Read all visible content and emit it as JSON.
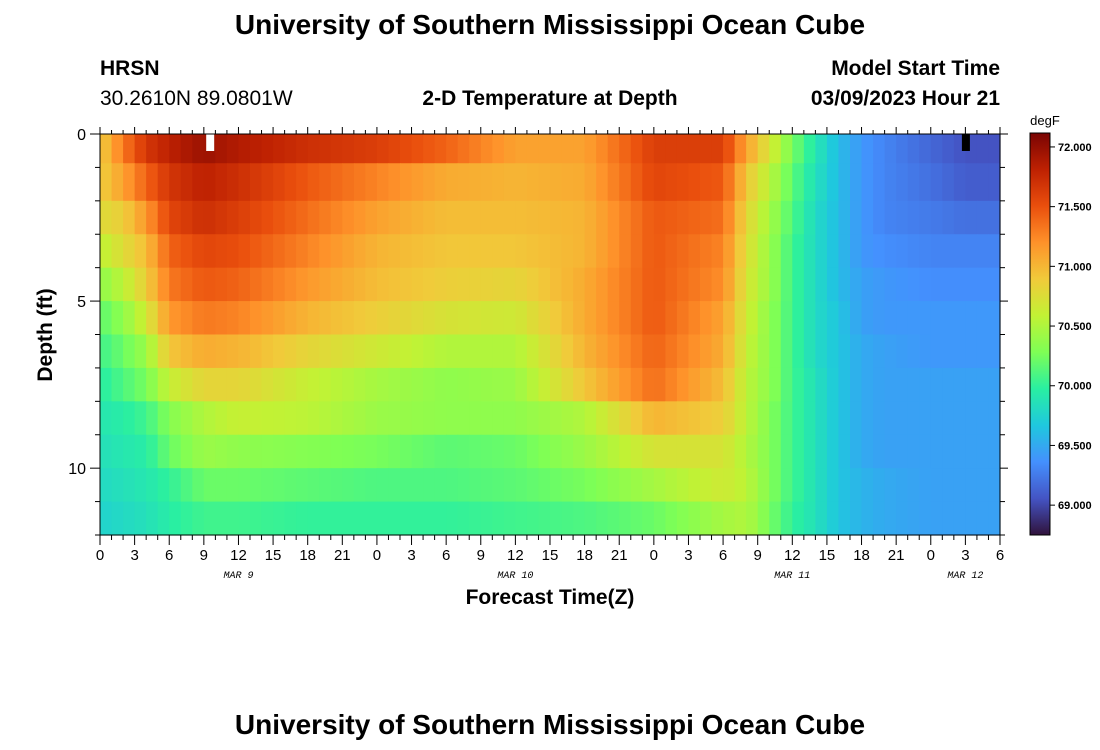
{
  "header": {
    "title": "University of Southern Mississippi Ocean Cube",
    "station": "HRSN",
    "coords": "30.2610N  89.0801W",
    "plot_title": "2-D Temperature at Depth",
    "model_start_label": "Model Start Time",
    "model_start_value": "03/09/2023 Hour 21"
  },
  "footer": {
    "title": "University of Southern Mississippi Ocean Cube"
  },
  "chart_data": {
    "type": "heatmap",
    "title": "2-D Temperature at Depth",
    "xlabel": "Forecast Time(Z)",
    "ylabel": "Depth (ft)",
    "units": "degF",
    "x_ticks": [
      "0",
      "3",
      "6",
      "9",
      "12",
      "15",
      "18",
      "21",
      "0",
      "3",
      "6",
      "9",
      "12",
      "15",
      "18",
      "21",
      "0",
      "3",
      "6",
      "9",
      "12",
      "15",
      "18",
      "21",
      "0",
      "3",
      "6"
    ],
    "day_labels": [
      {
        "label": "MAR 9",
        "at_hour": 12
      },
      {
        "label": "MAR 10",
        "at_hour": 36
      },
      {
        "label": "MAR 11",
        "at_hour": 60
      },
      {
        "label": "MAR 12",
        "at_hour": 75
      }
    ],
    "x_range_hours": [
      0,
      78
    ],
    "y_ticks": [
      0,
      5,
      10
    ],
    "y_range_ft": [
      0,
      12
    ],
    "colorbar": {
      "range": [
        68.75,
        72.1
      ],
      "ticks": [
        "72.000",
        "71.500",
        "71.000",
        "70.500",
        "70.000",
        "69.500",
        "69.000"
      ],
      "stops": [
        "#30123b",
        "#4454c4",
        "#4490fe",
        "#1fc8de",
        "#29efa2",
        "#7eff55",
        "#c2f234",
        "#f1ca3a",
        "#fe922a",
        "#ea4f0d",
        "#be2102",
        "#7a0403"
      ]
    },
    "depth_levels_ft": [
      0.25,
      1.5,
      2.5,
      3.5,
      4.5,
      5.5,
      6.5,
      7.5,
      8.5,
      9.5,
      10.5,
      11.5
    ],
    "temperature_keyframes": {
      "hours": [
        0,
        2,
        4,
        6,
        9,
        12,
        18,
        24,
        30,
        36,
        42,
        48,
        54,
        56,
        58,
        60,
        62,
        64,
        66,
        68,
        72,
        75,
        78
      ],
      "rows": [
        [
          70.85,
          71.3,
          71.65,
          71.8,
          71.95,
          71.85,
          71.7,
          71.6,
          71.4,
          71.1,
          71.1,
          71.6,
          71.6,
          71.1,
          70.7,
          70.25,
          69.9,
          69.6,
          69.4,
          69.3,
          69.15,
          69.05,
          69.05
        ],
        [
          70.85,
          71.1,
          71.4,
          71.65,
          71.8,
          71.7,
          71.45,
          71.25,
          71.05,
          71.0,
          71.05,
          71.55,
          71.45,
          70.9,
          70.55,
          70.15,
          69.85,
          69.6,
          69.4,
          69.3,
          69.2,
          69.1,
          69.1
        ],
        [
          70.75,
          70.85,
          71.15,
          71.55,
          71.7,
          71.6,
          71.35,
          71.1,
          70.95,
          70.95,
          71.0,
          71.45,
          71.35,
          70.8,
          70.45,
          70.1,
          69.8,
          69.6,
          69.4,
          69.3,
          69.25,
          69.2,
          69.2
        ],
        [
          70.55,
          70.75,
          70.95,
          71.4,
          71.55,
          71.5,
          71.25,
          71.0,
          70.9,
          70.9,
          71.0,
          71.45,
          71.25,
          70.75,
          70.4,
          70.05,
          69.8,
          69.6,
          69.4,
          69.35,
          69.3,
          69.3,
          69.3
        ],
        [
          70.35,
          70.55,
          70.85,
          71.3,
          71.45,
          71.4,
          71.15,
          70.95,
          70.85,
          70.8,
          71.05,
          71.45,
          71.2,
          70.7,
          70.4,
          70.05,
          69.8,
          69.6,
          69.45,
          69.4,
          69.35,
          69.35,
          69.35
        ],
        [
          70.15,
          70.35,
          70.65,
          71.15,
          71.3,
          71.25,
          71.0,
          70.85,
          70.7,
          70.65,
          71.05,
          71.45,
          71.1,
          70.65,
          70.35,
          70.05,
          69.8,
          69.65,
          69.45,
          69.4,
          69.4,
          69.4,
          69.4
        ],
        [
          70.05,
          70.2,
          70.4,
          70.9,
          71.05,
          71.0,
          70.8,
          70.65,
          70.5,
          70.5,
          71.0,
          71.4,
          71.05,
          70.6,
          70.35,
          70.05,
          69.8,
          69.65,
          69.5,
          69.45,
          69.4,
          69.4,
          69.4
        ],
        [
          69.95,
          70.1,
          70.25,
          70.6,
          70.8,
          70.8,
          70.6,
          70.45,
          70.35,
          70.4,
          70.9,
          71.35,
          70.95,
          70.55,
          70.35,
          70.05,
          69.85,
          69.65,
          69.5,
          69.45,
          69.45,
          69.45,
          69.45
        ],
        [
          69.9,
          69.95,
          70.05,
          70.3,
          70.5,
          70.6,
          70.55,
          70.4,
          70.35,
          70.35,
          70.5,
          71.0,
          70.85,
          70.55,
          70.3,
          70.05,
          69.85,
          69.65,
          69.5,
          69.45,
          69.45,
          69.45,
          69.45
        ],
        [
          69.85,
          69.9,
          69.95,
          70.2,
          70.4,
          70.35,
          70.3,
          70.25,
          70.15,
          70.2,
          70.4,
          70.7,
          70.7,
          70.5,
          70.3,
          70.05,
          69.85,
          69.65,
          69.5,
          69.45,
          69.45,
          69.45,
          69.45
        ],
        [
          69.8,
          69.85,
          69.9,
          70.0,
          70.2,
          70.2,
          70.15,
          70.1,
          70.1,
          70.15,
          70.25,
          70.45,
          70.65,
          70.55,
          70.3,
          70.05,
          69.85,
          69.65,
          69.55,
          69.5,
          69.45,
          69.45,
          69.45
        ],
        [
          69.75,
          69.8,
          69.85,
          69.95,
          70.05,
          70.05,
          70.0,
          70.0,
          70.0,
          70.05,
          70.1,
          70.2,
          70.45,
          70.5,
          70.25,
          70.0,
          69.85,
          69.65,
          69.55,
          69.5,
          69.45,
          69.45,
          69.45
        ]
      ]
    },
    "grid": false
  }
}
